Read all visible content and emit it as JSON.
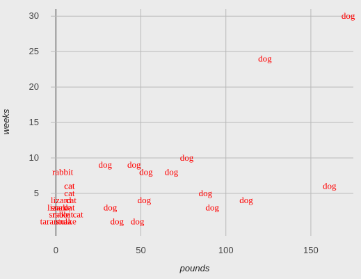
{
  "chart_data": {
    "type": "scatter",
    "title": "",
    "xlabel": "pounds",
    "ylabel": "weeks",
    "xlim": [
      -3,
      175
    ],
    "ylim": [
      -1,
      31
    ],
    "xticks": [
      0,
      50,
      100,
      150
    ],
    "yticks": [
      5,
      10,
      15,
      20,
      25,
      30
    ],
    "grid": true,
    "label_color": "#ff0000",
    "points": [
      {
        "x": 172,
        "y": 30,
        "label": "dog"
      },
      {
        "x": 123,
        "y": 24,
        "label": "dog"
      },
      {
        "x": 77,
        "y": 10,
        "label": "dog"
      },
      {
        "x": 29,
        "y": 9,
        "label": "dog"
      },
      {
        "x": 46,
        "y": 9,
        "label": "dog"
      },
      {
        "x": 53,
        "y": 8,
        "label": "dog"
      },
      {
        "x": 68,
        "y": 8,
        "label": "dog"
      },
      {
        "x": 4,
        "y": 8,
        "label": "rabbit"
      },
      {
        "x": 8,
        "y": 6,
        "label": "cat"
      },
      {
        "x": 8,
        "y": 6,
        "label": "cat"
      },
      {
        "x": 161,
        "y": 6,
        "label": "dog"
      },
      {
        "x": 8,
        "y": 5,
        "label": "cat"
      },
      {
        "x": 88,
        "y": 5,
        "label": "dog"
      },
      {
        "x": 3,
        "y": 4,
        "label": "lizard"
      },
      {
        "x": 9,
        "y": 4,
        "label": "cat"
      },
      {
        "x": 52,
        "y": 4,
        "label": "dog"
      },
      {
        "x": 112,
        "y": 4,
        "label": "dog"
      },
      {
        "x": 1,
        "y": 3,
        "label": "lizard"
      },
      {
        "x": 3,
        "y": 3,
        "label": "snake"
      },
      {
        "x": 8,
        "y": 3,
        "label": "cat"
      },
      {
        "x": 32,
        "y": 3,
        "label": "dog"
      },
      {
        "x": 92,
        "y": 3,
        "label": "dog"
      },
      {
        "x": 4,
        "y": 2,
        "label": "rabbit"
      },
      {
        "x": 13,
        "y": 2,
        "label": "cat"
      },
      {
        "x": 2,
        "y": 2,
        "label": "snake"
      },
      {
        "x": 0,
        "y": 1,
        "label": "tarantula"
      },
      {
        "x": 6,
        "y": 1,
        "label": "snake"
      },
      {
        "x": 36,
        "y": 1,
        "label": "dog"
      },
      {
        "x": 48,
        "y": 1,
        "label": "dog"
      }
    ]
  }
}
